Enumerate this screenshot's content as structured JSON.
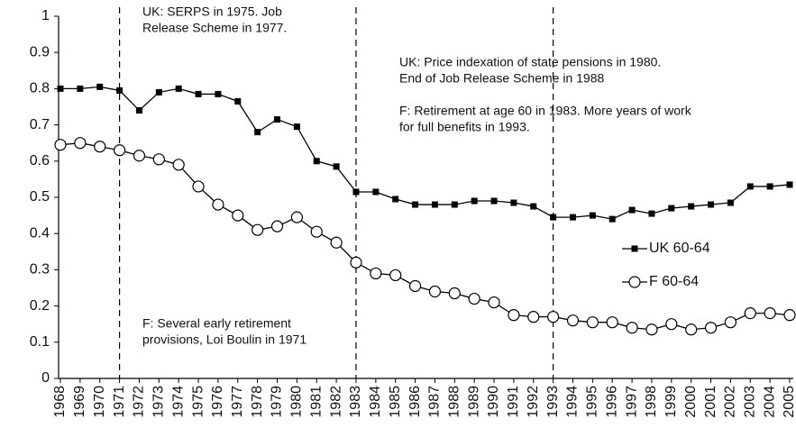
{
  "chart_data": {
    "type": "line",
    "categories": [
      "1968",
      "1969",
      "1970",
      "1971",
      "1972",
      "1973",
      "1974",
      "1975",
      "1976",
      "1977",
      "1978",
      "1979",
      "1980",
      "1981",
      "1982",
      "1983",
      "1984",
      "1985",
      "1986",
      "1987",
      "1988",
      "1989",
      "1990",
      "1991",
      "1992",
      "1993",
      "1994",
      "1995",
      "1996",
      "1997",
      "1998",
      "1999",
      "2000",
      "2001",
      "2002",
      "2003",
      "2004",
      "2005"
    ],
    "series": [
      {
        "name": "UK 60-64",
        "color": "#000000",
        "marker": "square",
        "values": [
          0.8,
          0.8,
          0.805,
          0.795,
          0.74,
          0.79,
          0.8,
          0.785,
          0.785,
          0.765,
          0.68,
          0.715,
          0.695,
          0.6,
          0.585,
          0.515,
          0.515,
          0.495,
          0.48,
          0.48,
          0.48,
          0.49,
          0.49,
          0.485,
          0.475,
          0.445,
          0.445,
          0.45,
          0.44,
          0.465,
          0.455,
          0.47,
          0.475,
          0.48,
          0.485,
          0.53,
          0.53,
          0.535
        ]
      },
      {
        "name": "F 60-64",
        "color": "#000000",
        "marker": "circle",
        "values": [
          0.645,
          0.65,
          0.64,
          0.63,
          0.615,
          0.605,
          0.59,
          0.53,
          0.48,
          0.45,
          0.41,
          0.42,
          0.445,
          0.405,
          0.375,
          0.32,
          0.29,
          0.285,
          0.255,
          0.24,
          0.235,
          0.22,
          0.21,
          0.175,
          0.17,
          0.17,
          0.16,
          0.155,
          0.155,
          0.14,
          0.135,
          0.15,
          0.135,
          0.14,
          0.155,
          0.18,
          0.18,
          0.175
        ]
      }
    ],
    "ylim": [
      0,
      1
    ],
    "yticks": [
      0,
      0.1,
      0.2,
      0.3,
      0.4,
      0.5,
      0.6,
      0.7,
      0.8,
      0.9,
      1
    ],
    "grid": false,
    "vertical_lines": [
      "1971",
      "1983",
      "1993"
    ],
    "annotations": [
      {
        "lines": [
          "UK: SERPS in 1975. Job",
          "Release Scheme in 1977."
        ]
      },
      {
        "lines": [
          "UK: Price indexation of state pensions in 1980.",
          "End of Job Release Scheme in 1988",
          "",
          "F: Retirement at age 60 in 1983.  More years of work",
          "for full benefits in 1993."
        ]
      },
      {
        "lines": [
          "F: Several early retirement",
          "provisions, Loi Boulin in 1971"
        ]
      }
    ]
  }
}
